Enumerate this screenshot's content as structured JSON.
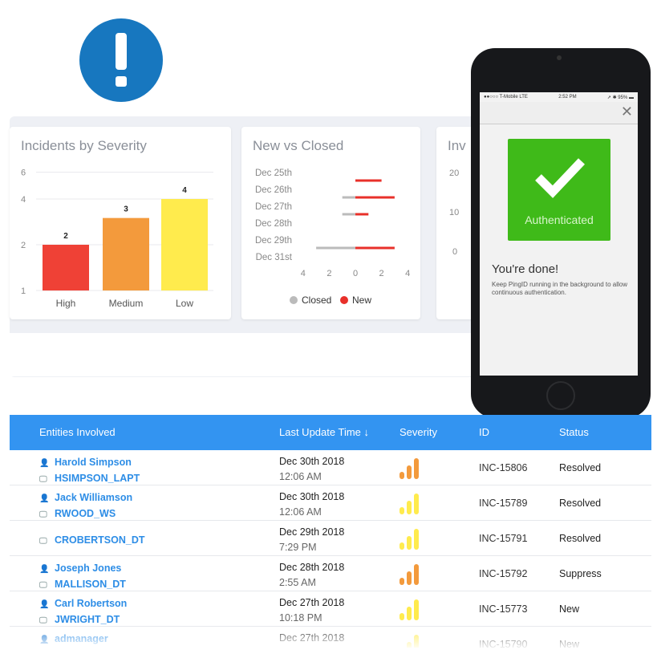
{
  "colors": {
    "accent": "#3394f1",
    "alert": "#1777bf",
    "high": "#ef4136",
    "medium": "#f39a3c",
    "low": "#ffeb4d",
    "closed": "#bbbbbb",
    "new": "#e8302a",
    "auth": "#3fba19"
  },
  "alert_icon": "exclamation-icon",
  "cards": [
    {
      "title": "Incidents by Severity"
    },
    {
      "title": "New vs Closed"
    },
    {
      "title": "Inv"
    }
  ],
  "chart_data": [
    {
      "type": "bar",
      "title": "Incidents by Severity",
      "categories": [
        "High",
        "Medium",
        "Low"
      ],
      "values": [
        2,
        3,
        4
      ],
      "yscale": "log",
      "yticks": [
        1,
        2,
        4,
        6
      ],
      "ylim": [
        1,
        6
      ],
      "grid": true,
      "colors": [
        "#ef4136",
        "#f39a3c",
        "#ffeb4d"
      ]
    },
    {
      "type": "bar",
      "orientation": "horizontal-diverging",
      "title": "New vs Closed",
      "categories": [
        "Dec 25th",
        "Dec 26th",
        "Dec 27th",
        "Dec 28th",
        "Dec 29th",
        "Dec 31st"
      ],
      "series": [
        {
          "name": "Closed",
          "values": [
            0,
            1,
            1,
            0,
            3,
            0
          ]
        },
        {
          "name": "New",
          "values": [
            2,
            3,
            1,
            0,
            3,
            0
          ]
        }
      ],
      "xticks": [
        "4",
        "2",
        "0",
        "2",
        "4"
      ],
      "xlim": [
        -4,
        4
      ],
      "legend": "bottom"
    },
    {
      "type": "bar",
      "title": "Inv",
      "yticks": [
        "20",
        "10",
        "0"
      ]
    }
  ],
  "phone": {
    "carrier": "●●○○○ T-Mobile  LTE",
    "time": "2:52 PM",
    "battery": "➚ ✱ 95% ▬",
    "close": "✕",
    "auth_label": "Authenticated",
    "done": "You're done!",
    "message": "Keep PingID running in the background to allow continuous authentication."
  },
  "table": {
    "headers": [
      "Entities Involved",
      "Last Update Time ↓",
      "Severity",
      "ID",
      "Status"
    ],
    "rows": [
      {
        "user": "Harold Simpson",
        "host": "HSIMPSON_LAPT",
        "date": "Dec 30th 2018",
        "time": "12:06 AM",
        "severity": "medium",
        "id": "INC-15806",
        "status": "Resolved"
      },
      {
        "user": "Jack Williamson",
        "host": "RWOOD_WS",
        "date": "Dec 30th 2018",
        "time": "12:06 AM",
        "severity": "low",
        "id": "INC-15789",
        "status": "Resolved"
      },
      {
        "user": "",
        "host": "CROBERTSON_DT",
        "date": "Dec 29th 2018",
        "time": "7:29 PM",
        "severity": "low",
        "id": "INC-15791",
        "status": "Resolved"
      },
      {
        "user": "Joseph Jones",
        "host": "MALLISON_DT",
        "date": "Dec 28th 2018",
        "time": "2:55 AM",
        "severity": "medium",
        "id": "INC-15792",
        "status": "Suppress"
      },
      {
        "user": "Carl Robertson",
        "host": "JWRIGHT_DT",
        "date": "Dec 27th 2018",
        "time": "10:18 PM",
        "severity": "low",
        "id": "INC-15773",
        "status": "New"
      },
      {
        "user": "admanager",
        "host": "",
        "date": "Dec 27th 2018",
        "time": "",
        "severity": "low",
        "id": "INC-15790",
        "status": "New"
      }
    ]
  }
}
